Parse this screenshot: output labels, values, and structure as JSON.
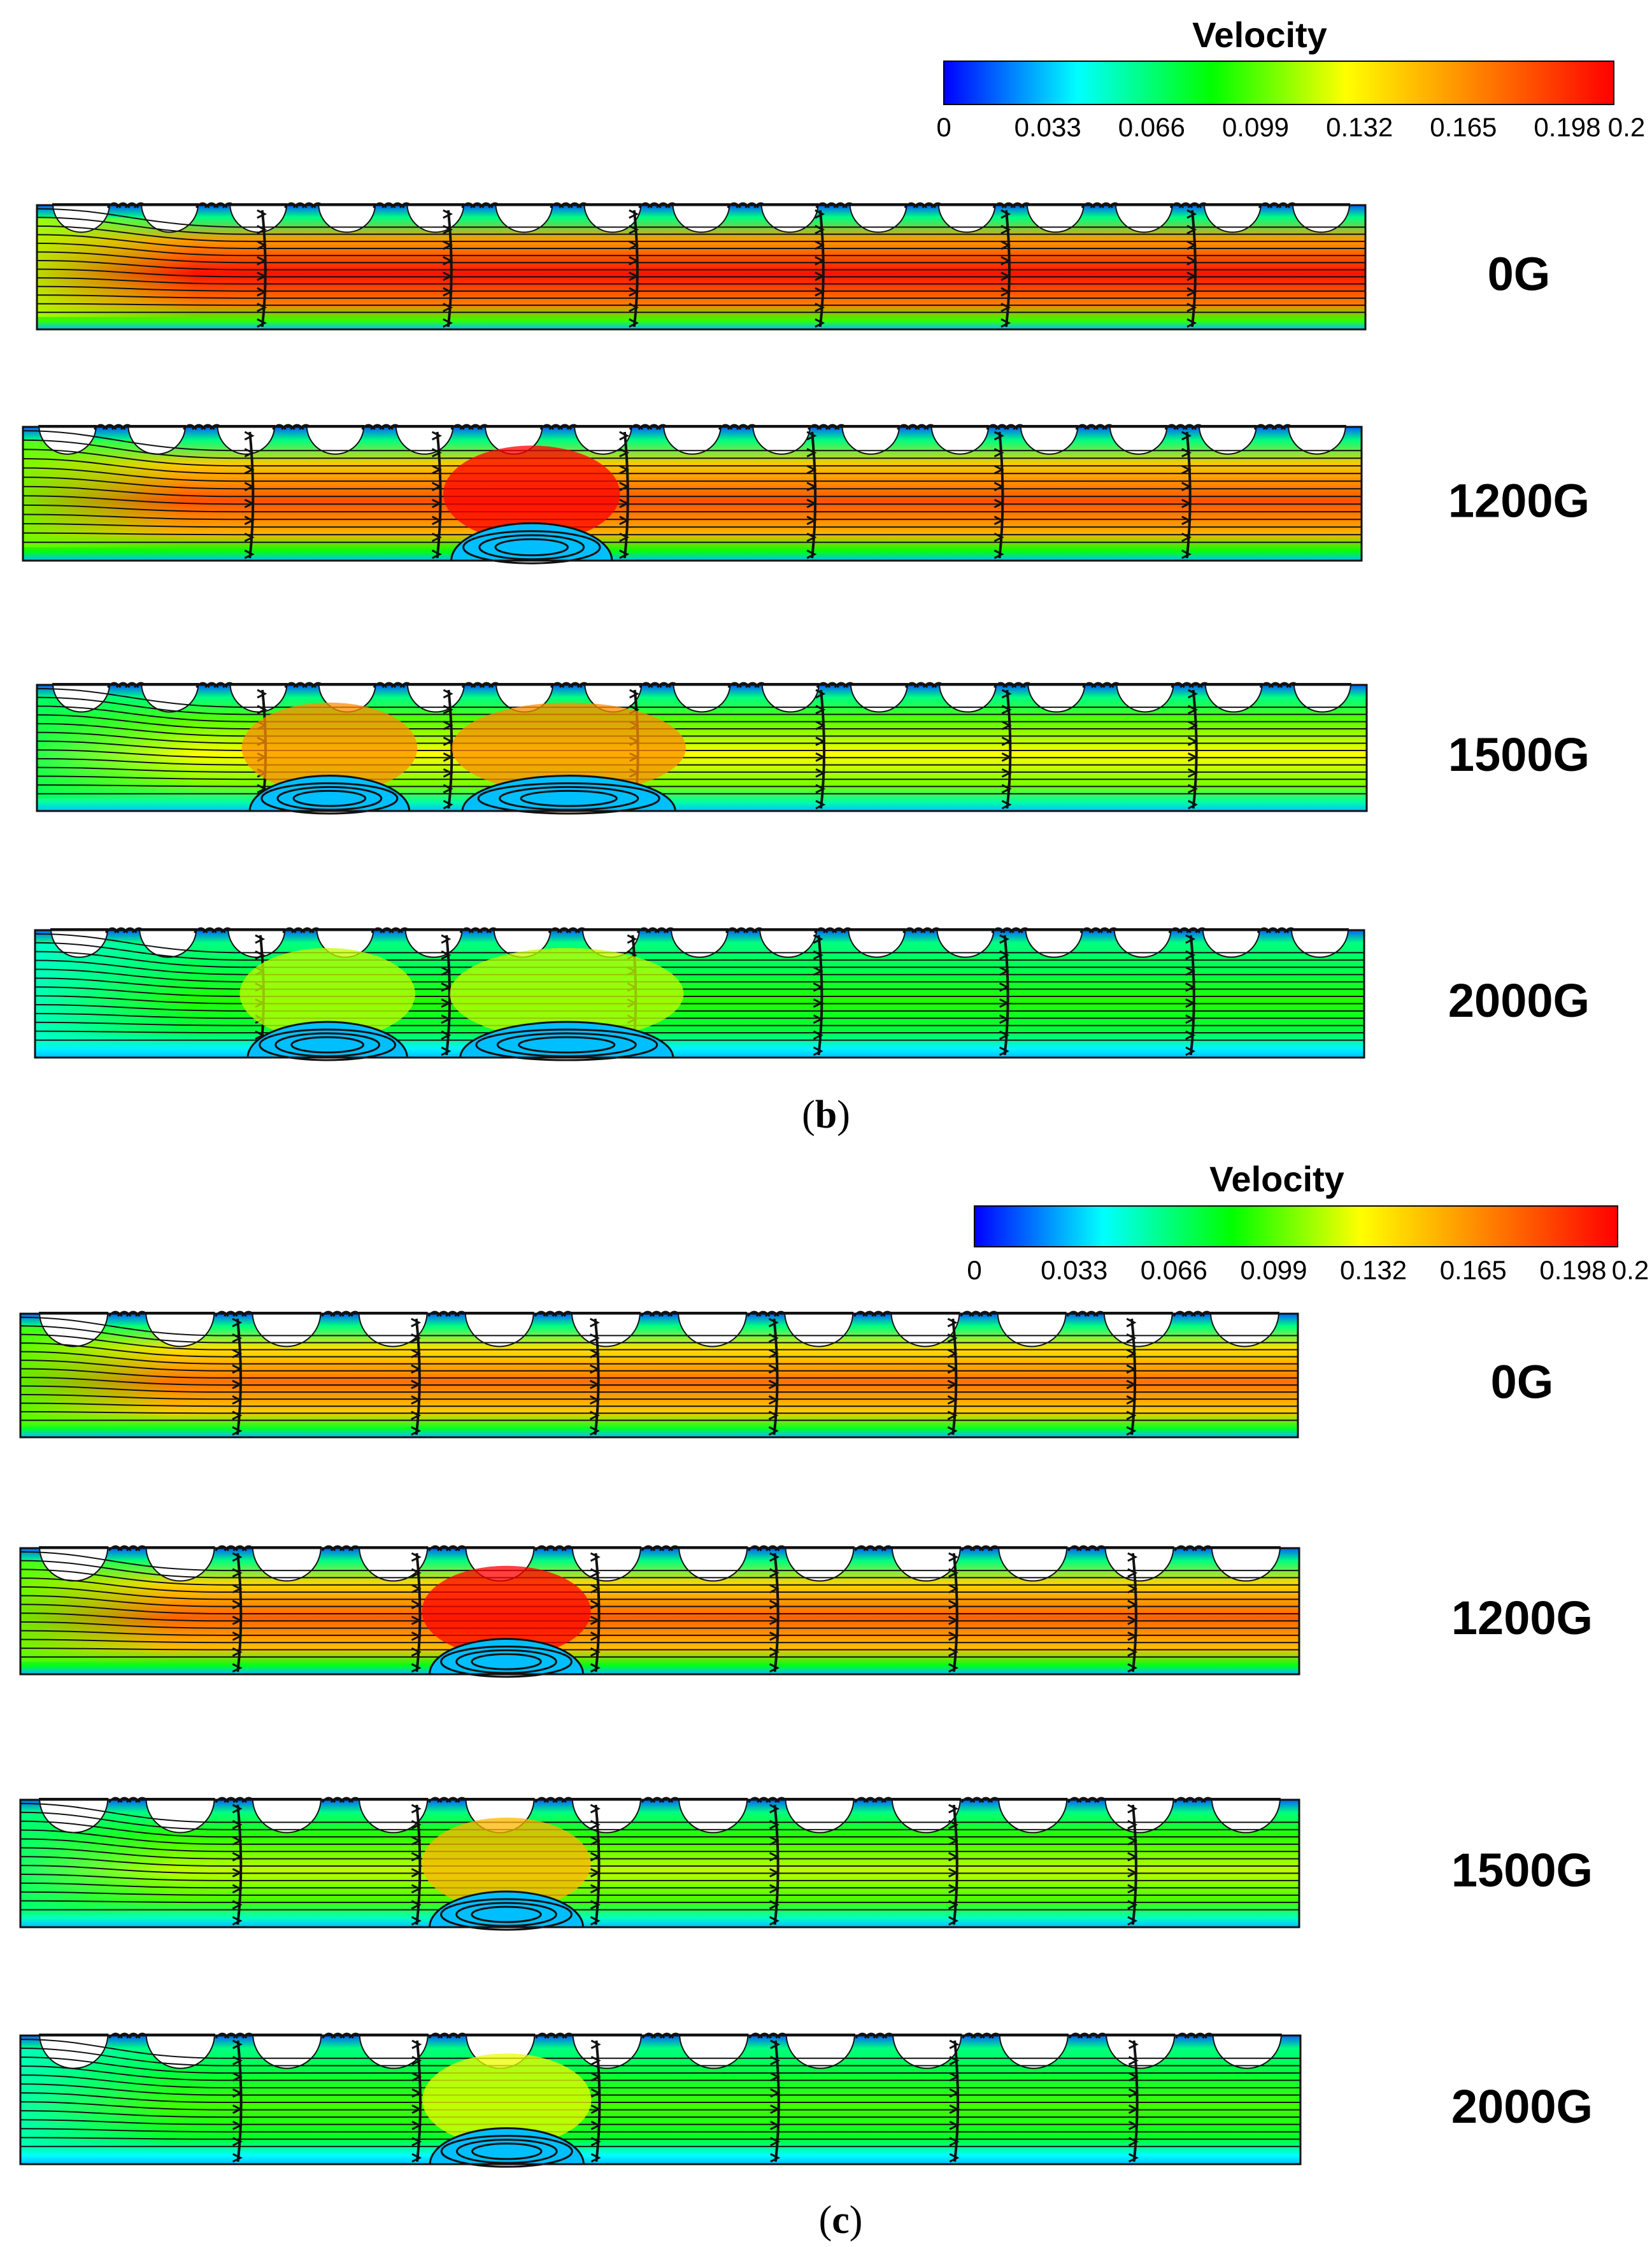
{
  "colorbar": {
    "title": "Velocity",
    "ticks": [
      "0",
      "0.033",
      "0.066",
      "0.099",
      "0.132",
      "0.165",
      "0.198",
      "0.2"
    ],
    "min": 0,
    "max": 0.2,
    "colors": [
      "#0000ff",
      "#00ffff",
      "#00ff00",
      "#ffff00",
      "#ff8000",
      "#ff0000"
    ]
  },
  "panels": [
    {
      "label": "b",
      "rows": [
        {
          "label": "0G",
          "core_velocity": 0.195,
          "recirculation_zones": 0
        },
        {
          "label": "1200G",
          "core_velocity": 0.175,
          "recirculation_zones": 1
        },
        {
          "label": "1500G",
          "core_velocity": 0.12,
          "recirculation_zones": 2
        },
        {
          "label": "2000G",
          "core_velocity": 0.085,
          "recirculation_zones": 2
        }
      ]
    },
    {
      "label": "c",
      "rows": [
        {
          "label": "0G",
          "core_velocity": 0.165,
          "recirculation_zones": 0
        },
        {
          "label": "1200G",
          "core_velocity": 0.17,
          "recirculation_zones": 1
        },
        {
          "label": "1500G",
          "core_velocity": 0.11,
          "recirculation_zones": 1
        },
        {
          "label": "2000G",
          "core_velocity": 0.09,
          "recirculation_zones": 1
        }
      ]
    }
  ]
}
